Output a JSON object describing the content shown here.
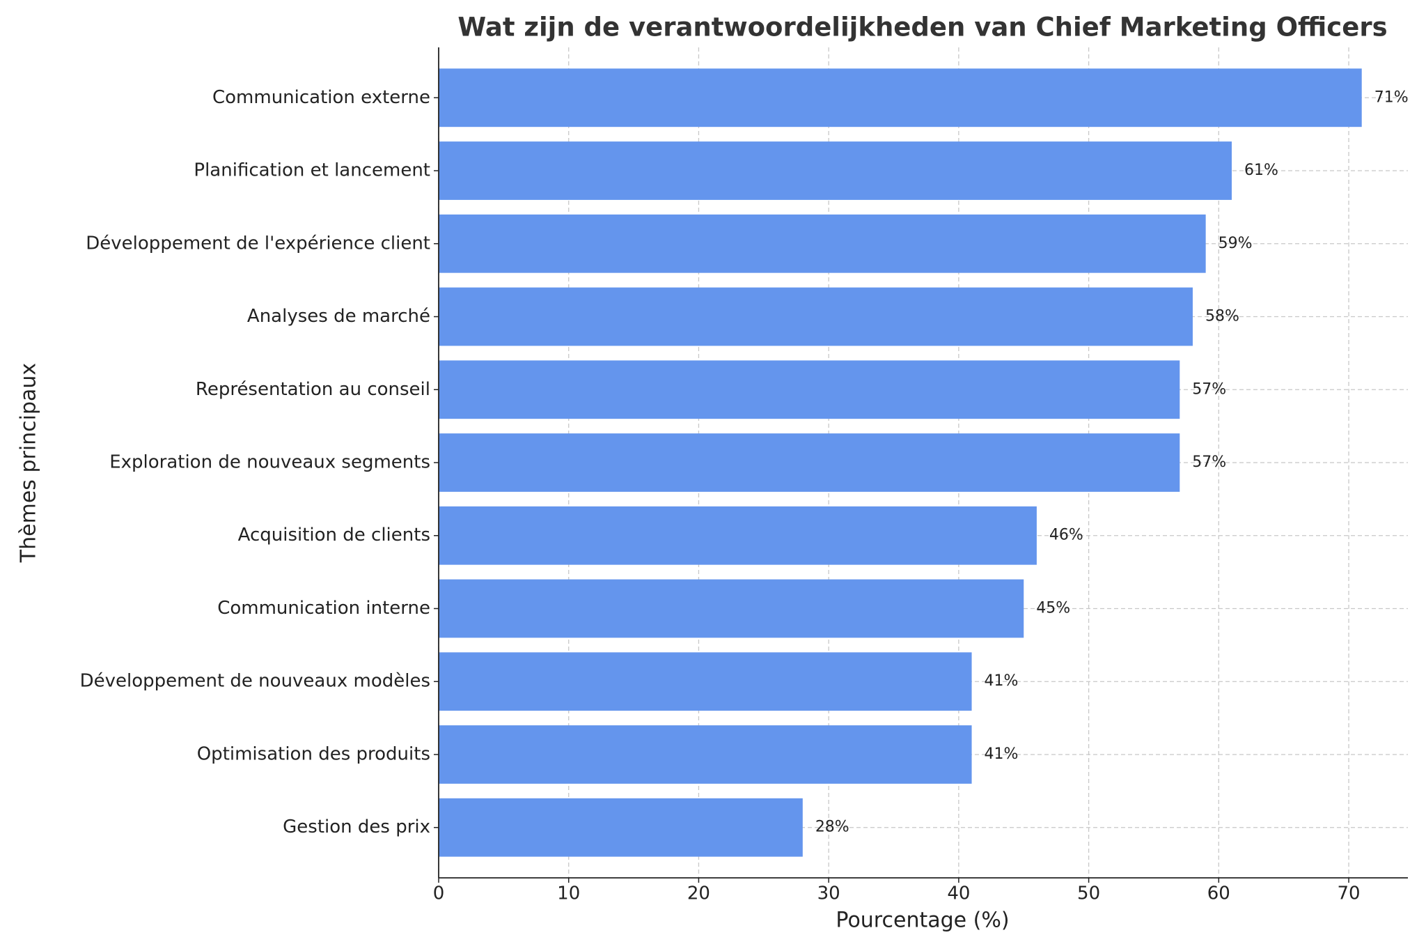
{
  "chart_data": {
    "type": "bar",
    "orientation": "horizontal",
    "title": "Wat zijn de verantwoordelijkheden van Chief Marketing Officers",
    "xlabel": "Pourcentage (%)",
    "ylabel": "Thèmes principaux",
    "categories": [
      "Communication externe",
      "Planification et lancement",
      "Développement de l'expérience client",
      "Analyses de marché",
      "Représentation au conseil",
      "Exploration de nouveaux segments",
      "Acquisition de clients",
      "Communication interne",
      "Développement de nouveaux modèles",
      "Optimisation des produits",
      "Gestion des prix"
    ],
    "values": [
      71,
      61,
      59,
      58,
      57,
      57,
      46,
      45,
      41,
      41,
      28
    ],
    "value_labels": [
      "71%",
      "61%",
      "59%",
      "58%",
      "57%",
      "57%",
      "46%",
      "45%",
      "41%",
      "41%",
      "28%"
    ],
    "color": "#6495ed",
    "xlim": [
      0,
      74.55
    ],
    "xticks": [
      0,
      10,
      20,
      30,
      40,
      50,
      60,
      70
    ],
    "grid": true
  }
}
